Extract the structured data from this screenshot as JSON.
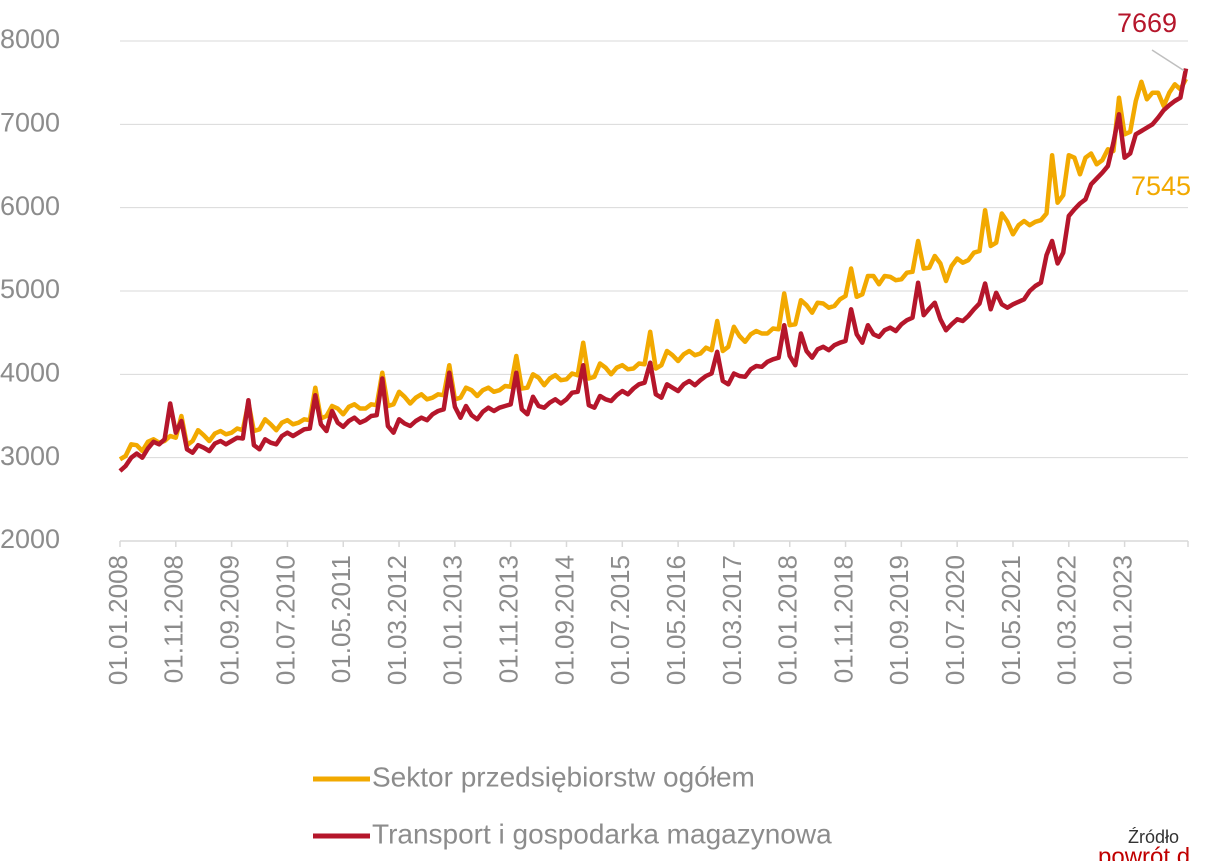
{
  "chart_data": {
    "type": "line",
    "categories": [
      "01.01.2008",
      null,
      null,
      null,
      null,
      null,
      null,
      null,
      null,
      null,
      "01.11.2008",
      null,
      null,
      null,
      null,
      null,
      null,
      null,
      null,
      null,
      "01.09.2009",
      null,
      null,
      null,
      null,
      null,
      null,
      null,
      null,
      null,
      "01.07.2010",
      null,
      null,
      null,
      null,
      null,
      null,
      null,
      null,
      null,
      "01.05.2011",
      null,
      null,
      null,
      null,
      null,
      null,
      null,
      null,
      null,
      "01.03.2012",
      null,
      null,
      null,
      null,
      null,
      null,
      null,
      null,
      null,
      "01.01.2013",
      null,
      null,
      null,
      null,
      null,
      null,
      null,
      null,
      null,
      "01.11.2013",
      null,
      null,
      null,
      null,
      null,
      null,
      null,
      null,
      null,
      "01.09.2014",
      null,
      null,
      null,
      null,
      null,
      null,
      null,
      null,
      null,
      "01.07.2015",
      null,
      null,
      null,
      null,
      null,
      null,
      null,
      null,
      null,
      "01.05.2016",
      null,
      null,
      null,
      null,
      null,
      null,
      null,
      null,
      null,
      "01.03.2017",
      null,
      null,
      null,
      null,
      null,
      null,
      null,
      null,
      null,
      "01.01.2018",
      null,
      null,
      null,
      null,
      null,
      null,
      null,
      null,
      null,
      "01.11.2018",
      null,
      null,
      null,
      null,
      null,
      null,
      null,
      null,
      null,
      "01.09.2019",
      null,
      null,
      null,
      null,
      null,
      null,
      null,
      null,
      null,
      "01.07.2020",
      null,
      null,
      null,
      null,
      null,
      null,
      null,
      null,
      null,
      "01.05.2021",
      null,
      null,
      null,
      null,
      null,
      null,
      null,
      null,
      null,
      "01.03.2022",
      null,
      null,
      null,
      null,
      null,
      null,
      null,
      null,
      null,
      "01.01.2023",
      null,
      null,
      null,
      null,
      null,
      null,
      null,
      null,
      null,
      null,
      null
    ],
    "series": [
      {
        "name": "Sektor przedsiębiorstw ogółem",
        "color": "#f2a900",
        "values": [
          2980,
          3020,
          3160,
          3150,
          3080,
          3190,
          3220,
          3180,
          3200,
          3260,
          3240,
          3500,
          3150,
          3200,
          3330,
          3270,
          3200,
          3290,
          3320,
          3280,
          3300,
          3350,
          3330,
          3660,
          3320,
          3340,
          3460,
          3400,
          3330,
          3420,
          3450,
          3400,
          3420,
          3460,
          3450,
          3840,
          3470,
          3500,
          3620,
          3590,
          3520,
          3610,
          3640,
          3590,
          3590,
          3640,
          3630,
          4020,
          3620,
          3640,
          3790,
          3730,
          3650,
          3720,
          3760,
          3700,
          3720,
          3760,
          3750,
          4110,
          3700,
          3720,
          3840,
          3810,
          3740,
          3810,
          3840,
          3790,
          3810,
          3860,
          3850,
          4220,
          3830,
          3840,
          4000,
          3960,
          3870,
          3950,
          3990,
          3930,
          3940,
          4010,
          3990,
          4380,
          3950,
          3970,
          4130,
          4080,
          4000,
          4080,
          4110,
          4060,
          4070,
          4130,
          4120,
          4510,
          4070,
          4110,
          4280,
          4230,
          4160,
          4240,
          4280,
          4230,
          4250,
          4320,
          4290,
          4640,
          4280,
          4330,
          4570,
          4460,
          4390,
          4480,
          4520,
          4490,
          4490,
          4550,
          4540,
          4970,
          4590,
          4600,
          4890,
          4830,
          4740,
          4860,
          4850,
          4800,
          4820,
          4900,
          4940,
          5270,
          4930,
          4960,
          5180,
          5180,
          5080,
          5180,
          5170,
          5130,
          5140,
          5220,
          5230,
          5600,
          5270,
          5280,
          5420,
          5330,
          5120,
          5300,
          5390,
          5340,
          5370,
          5460,
          5480,
          5970,
          5540,
          5580,
          5930,
          5830,
          5680,
          5790,
          5840,
          5790,
          5830,
          5850,
          5930,
          6630,
          6060,
          6150,
          6630,
          6600,
          6400,
          6600,
          6650,
          6520,
          6570,
          6700,
          6680,
          7320,
          6880,
          6910,
          7280,
          7510,
          7300,
          7380,
          7380,
          7220,
          7380,
          7480,
          7420,
          7545
        ]
      },
      {
        "name": "Transport i gospodarka magazynowa",
        "color": "#b5162b",
        "values": [
          2840,
          2900,
          3000,
          3050,
          3000,
          3110,
          3190,
          3160,
          3220,
          3650,
          3300,
          3440,
          3100,
          3060,
          3150,
          3120,
          3080,
          3170,
          3200,
          3160,
          3200,
          3240,
          3230,
          3690,
          3150,
          3100,
          3220,
          3180,
          3160,
          3260,
          3300,
          3260,
          3300,
          3340,
          3350,
          3750,
          3400,
          3320,
          3560,
          3420,
          3370,
          3440,
          3480,
          3420,
          3450,
          3500,
          3510,
          3950,
          3380,
          3300,
          3460,
          3410,
          3380,
          3440,
          3480,
          3450,
          3520,
          3560,
          3580,
          4020,
          3610,
          3480,
          3620,
          3510,
          3460,
          3550,
          3600,
          3560,
          3600,
          3620,
          3640,
          4020,
          3580,
          3520,
          3730,
          3620,
          3600,
          3660,
          3700,
          3650,
          3700,
          3780,
          3790,
          4110,
          3630,
          3600,
          3740,
          3700,
          3680,
          3750,
          3800,
          3760,
          3830,
          3880,
          3900,
          4140,
          3760,
          3720,
          3880,
          3840,
          3800,
          3880,
          3920,
          3870,
          3930,
          3980,
          4010,
          4270,
          3920,
          3880,
          4010,
          3980,
          3970,
          4060,
          4100,
          4090,
          4150,
          4180,
          4200,
          4590,
          4220,
          4110,
          4490,
          4280,
          4200,
          4300,
          4330,
          4290,
          4350,
          4380,
          4400,
          4780,
          4480,
          4380,
          4590,
          4480,
          4450,
          4530,
          4560,
          4520,
          4600,
          4650,
          4680,
          5100,
          4710,
          4790,
          4860,
          4660,
          4530,
          4600,
          4660,
          4640,
          4700,
          4780,
          4850,
          5090,
          4780,
          4980,
          4840,
          4800,
          4840,
          4870,
          4900,
          5000,
          5060,
          5100,
          5430,
          5600,
          5330,
          5460,
          5900,
          5980,
          6050,
          6100,
          6280,
          6350,
          6420,
          6500,
          6780,
          7120,
          6600,
          6650,
          6880,
          6920,
          6960,
          7000,
          7080,
          7170,
          7230,
          7280,
          7320,
          7669
        ]
      }
    ],
    "ylim": [
      2000,
      8000
    ],
    "yticks": [
      2000,
      3000,
      4000,
      5000,
      6000,
      7000,
      8000
    ],
    "grid": true
  },
  "source_note": "Źródło",
  "footer_link": "powrót d"
}
